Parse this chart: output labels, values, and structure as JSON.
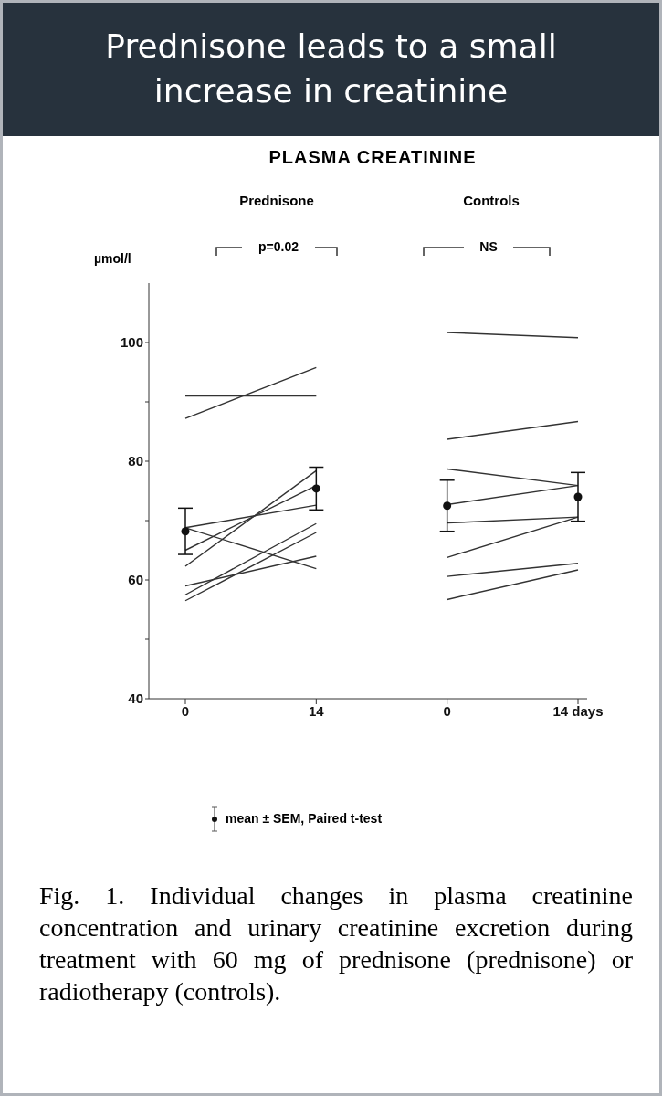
{
  "chart_data": {
    "type": "line",
    "title": "Prednisone leads to a small increase in creatinine",
    "subtitle": "PLASMA CREATININE",
    "ylabel": "µmol/l",
    "categories": [
      "0",
      "14",
      "0",
      "14 days"
    ],
    "ylim": [
      40,
      110
    ],
    "yticks": [
      40,
      {
        "value": 50,
        "label": null
      },
      60,
      {
        "value": 70,
        "label": null
      },
      80,
      {
        "value": 90,
        "label": null
      },
      100
    ],
    "grid": false,
    "marker": "none",
    "line_style": "solid",
    "series": [
      {
        "color": "#333333",
        "values": [
          91,
          91,
          null,
          null
        ]
      },
      {
        "color": "#333333",
        "values": [
          87.2,
          95.8,
          null,
          null
        ]
      },
      {
        "color": "#333333",
        "values": [
          68.8,
          72.6,
          null,
          null
        ]
      },
      {
        "color": "#333333",
        "values": [
          68.8,
          61.9,
          null,
          null
        ]
      },
      {
        "color": "#333333",
        "values": [
          65,
          75.9,
          null,
          null
        ]
      },
      {
        "color": "#333333",
        "values": [
          62.3,
          78.4,
          null,
          null
        ]
      },
      {
        "color": "#333333",
        "values": [
          59,
          64,
          null,
          null
        ]
      },
      {
        "color": "#333333",
        "values": [
          57.5,
          69.5,
          null,
          null
        ]
      },
      {
        "color": "#333333",
        "values": [
          56.5,
          68,
          null,
          null
        ]
      },
      {
        "color": "#333333",
        "values": [
          null,
          null,
          101.7,
          100.8
        ]
      },
      {
        "color": "#333333",
        "values": [
          null,
          null,
          83.7,
          86.7
        ]
      },
      {
        "color": "#333333",
        "values": [
          null,
          null,
          78.7,
          75.9
        ]
      },
      {
        "color": "#333333",
        "values": [
          null,
          null,
          72.7,
          75.9
        ]
      },
      {
        "color": "#333333",
        "values": [
          null,
          null,
          69.6,
          70.6
        ]
      },
      {
        "color": "#333333",
        "values": [
          null,
          null,
          63.8,
          70.6
        ]
      },
      {
        "color": "#333333",
        "values": [
          null,
          null,
          60.6,
          62.8
        ]
      },
      {
        "color": "#333333",
        "values": [
          null,
          null,
          56.7,
          61.7
        ]
      },
      {
        "type": "scatter",
        "marker": "circle",
        "color": "#111111",
        "values": [
          68.2,
          75.4,
          72.5,
          74.0
        ],
        "errors": [
          3.9,
          3.6,
          4.3,
          4.1
        ]
      }
    ],
    "annotations": [
      "Prednisone",
      "Controls",
      "p=0.02",
      "NS",
      "mean ± SEM, Paired t-test",
      "Fig. 1. Individual changes in plasma creatinine concentration and urinary creatinine excretion during treatment with 60 mg of prednisone (prednisone) or radiotherapy (controls)."
    ]
  }
}
